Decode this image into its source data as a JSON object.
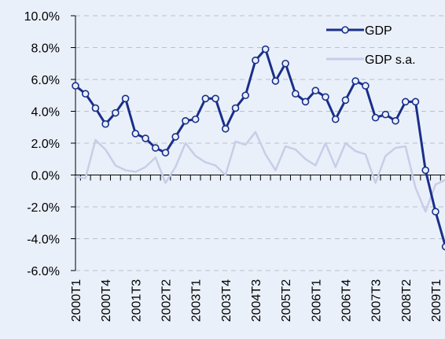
{
  "chart_data": {
    "type": "line",
    "title": "",
    "xlabel": "",
    "ylabel": "",
    "ylim": [
      -6,
      10
    ],
    "yticks": [
      10,
      8,
      6,
      4,
      2,
      0,
      -2,
      -4,
      -6
    ],
    "ytick_labels": [
      "10.0%",
      "8.0%",
      "6.0%",
      "4.0%",
      "2.0%",
      "0.0%",
      "-2.0%",
      "-4.0%",
      "-6.0%"
    ],
    "grid": "horizontal dashed",
    "legend_position": "top-right",
    "x": [
      "2000T1",
      "2000T2",
      "2000T3",
      "2000T4",
      "2001T1",
      "2001T2",
      "2001T3",
      "2001T4",
      "2002T1",
      "2002T2",
      "2002T3",
      "2002T4",
      "2003T1",
      "2003T2",
      "2003T3",
      "2003T4",
      "2004T1",
      "2004T2",
      "2004T3",
      "2004T4",
      "2005T1",
      "2005T2",
      "2005T3",
      "2005T4",
      "2006T1",
      "2006T2",
      "2006T3",
      "2006T4",
      "2007T1",
      "2007T2",
      "2007T3",
      "2007T4",
      "2008T1",
      "2008T2",
      "2008T3",
      "2008T4",
      "2009T1",
      "2009T2"
    ],
    "xtick_labels": [
      "2000T1",
      "2000T4",
      "2001T3",
      "2002T2",
      "2003T1",
      "2003T4",
      "2004T3",
      "2005T2",
      "2006T1",
      "2006T4",
      "2007T3",
      "2008T2",
      "2009T1"
    ],
    "series": [
      {
        "name": "GDP",
        "color": "#1a2f8a",
        "marker": "circle",
        "values": [
          5.6,
          5.1,
          4.2,
          3.2,
          3.9,
          4.8,
          2.6,
          2.3,
          1.7,
          1.4,
          2.4,
          3.4,
          3.5,
          4.8,
          4.8,
          2.9,
          4.2,
          5.0,
          7.2,
          7.9,
          5.9,
          7.0,
          5.1,
          4.6,
          5.3,
          4.9,
          3.5,
          4.7,
          5.9,
          5.6,
          3.6,
          3.8,
          3.4,
          4.6,
          4.6,
          0.3,
          -2.3,
          -4.5
        ]
      },
      {
        "name": "GDP s.a.",
        "color": "#c8cde8",
        "marker": "none",
        "values": [
          -0.1,
          -0.2,
          2.2,
          1.6,
          0.6,
          0.3,
          0.2,
          0.5,
          1.1,
          -0.5,
          0.5,
          2.0,
          1.2,
          0.8,
          0.6,
          0.0,
          2.1,
          1.9,
          2.7,
          1.3,
          0.3,
          1.8,
          1.6,
          1.0,
          0.6,
          2.0,
          0.5,
          2.0,
          1.5,
          1.3,
          -0.5,
          1.2,
          1.7,
          1.8,
          -0.8,
          -2.3,
          -0.6,
          -0.3
        ]
      }
    ]
  }
}
